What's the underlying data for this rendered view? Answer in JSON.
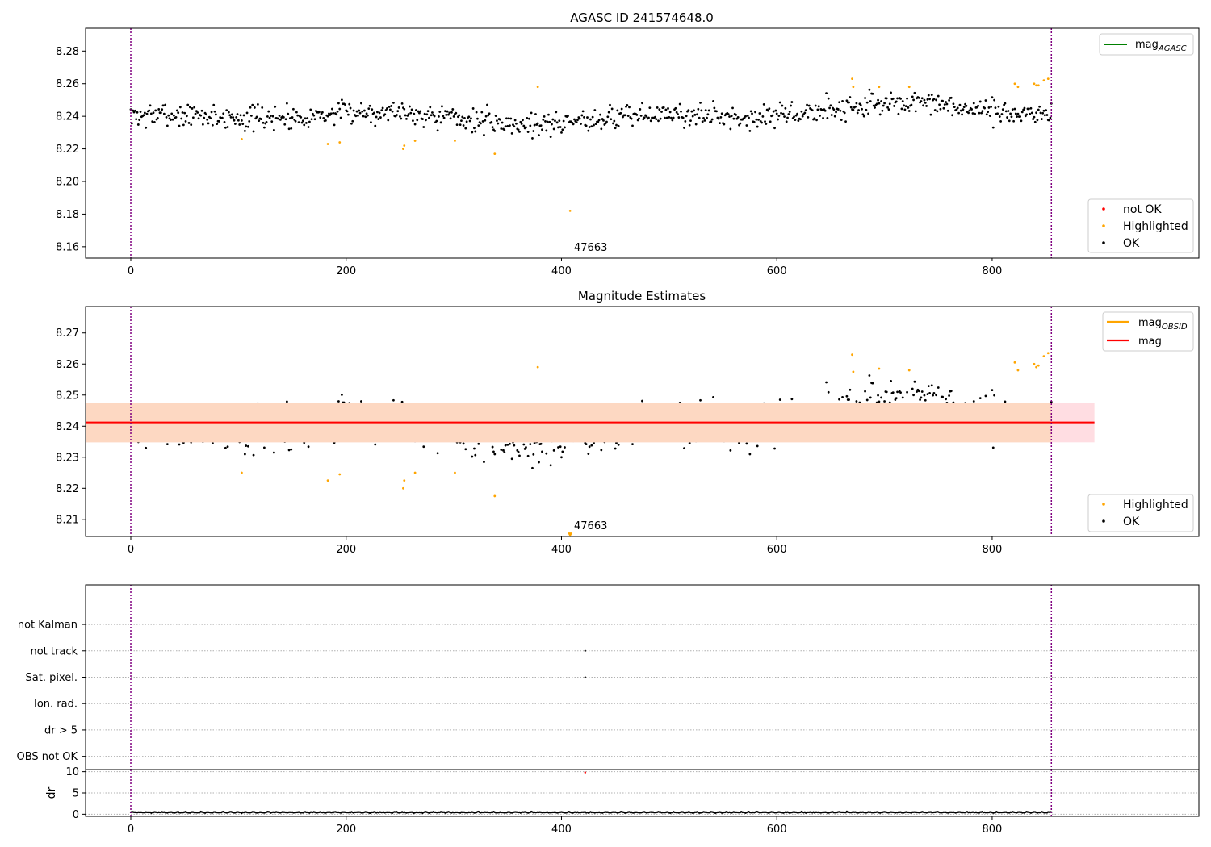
{
  "chart_data": [
    {
      "type": "scatter",
      "title": "AGASC ID 241574648.0",
      "xlabel": "",
      "ylabel": "",
      "xlim": [
        -42,
        992
      ],
      "ylim": [
        8.153,
        8.294
      ],
      "xticks": [
        0,
        200,
        400,
        600,
        800
      ],
      "yticks": [
        8.16,
        8.18,
        8.2,
        8.22,
        8.24,
        8.26,
        8.28
      ],
      "ytick_labels": [
        "8.16",
        "8.18",
        "8.20",
        "8.22",
        "8.24",
        "8.26",
        "8.28"
      ],
      "grid": false,
      "vlines": [
        0,
        855
      ],
      "annotation": {
        "text": "47663",
        "x": 410,
        "y": 8.157
      },
      "legend_lines": [
        {
          "label": "mag",
          "sub": "AGASC",
          "color": "#008000"
        }
      ],
      "legend_points": [
        {
          "label": "not OK",
          "color": "#ff0000"
        },
        {
          "label": "Highlighted",
          "color": "#ffa500"
        },
        {
          "label": "OK",
          "color": "#000000"
        }
      ],
      "legend_lines_position": "upper-right",
      "legend_points_position": "lower-right",
      "series": [
        {
          "name": "OK",
          "color": "#000000",
          "generated": {
            "n": 856,
            "x_start": 0,
            "x_end": 855,
            "base": 8.2375,
            "base_end": 8.2435,
            "seed": 7
          }
        },
        {
          "name": "Highlighted",
          "color": "#ffa500",
          "x": [
            103,
            183,
            194,
            253,
            254,
            264,
            301,
            338,
            378,
            408,
            670,
            671,
            695,
            723,
            821,
            824,
            839,
            841,
            843,
            848,
            852
          ],
          "y": [
            8.226,
            8.223,
            8.224,
            8.22,
            8.222,
            8.225,
            8.225,
            8.217,
            8.258,
            8.182,
            8.263,
            8.258,
            8.258,
            8.258,
            8.26,
            8.258,
            8.26,
            8.259,
            8.259,
            8.262,
            8.263
          ]
        }
      ]
    },
    {
      "type": "scatter",
      "title": "Magnitude Estimates",
      "xlabel": "",
      "ylabel": "",
      "xlim": [
        -42,
        992
      ],
      "ylim": [
        8.2045,
        8.2785
      ],
      "xticks": [
        0,
        200,
        400,
        600,
        800
      ],
      "yticks": [
        8.21,
        8.22,
        8.23,
        8.24,
        8.25,
        8.26,
        8.27
      ],
      "ytick_labels": [
        "8.21",
        "8.22",
        "8.23",
        "8.24",
        "8.25",
        "8.26",
        "8.27"
      ],
      "grid": false,
      "vlines": [
        0,
        855
      ],
      "annotation": {
        "text": "47663",
        "x": 410,
        "y": 8.2068
      },
      "mag_line": {
        "y": 8.2412,
        "x_start": -42,
        "x_end": 895,
        "color": "#ff0000"
      },
      "band_outer": {
        "y_low": 8.2348,
        "y_high": 8.2476,
        "x_start": -42,
        "x_end": 895,
        "color": "#ffdde2"
      },
      "band_inner": {
        "y_low": 8.2348,
        "y_high": 8.2476,
        "x_start": -42,
        "x_end": 855,
        "color": "#fdd8c2"
      },
      "legend_lines": [
        {
          "label": "mag",
          "sub": "OBSID",
          "color": "#ffa500"
        },
        {
          "label": "mag",
          "sub": "",
          "color": "#ff0000"
        }
      ],
      "legend_points": [
        {
          "label": "Highlighted",
          "color": "#ffa500"
        },
        {
          "label": "OK",
          "color": "#000000"
        }
      ],
      "legend_lines_position": "upper-right",
      "legend_points_position": "lower-right",
      "series": [
        {
          "name": "OK",
          "color": "#000000",
          "generated": {
            "n": 856,
            "x_start": 0,
            "x_end": 855,
            "base": 8.2375,
            "base_end": 8.2435,
            "seed": 7
          }
        },
        {
          "name": "Highlighted",
          "color": "#ffa500",
          "x": [
            103,
            183,
            194,
            253,
            254,
            264,
            301,
            338,
            378,
            670,
            671,
            695,
            723,
            821,
            824,
            839,
            841,
            843,
            848,
            852
          ],
          "y": [
            8.225,
            8.2225,
            8.2245,
            8.22,
            8.2225,
            8.225,
            8.225,
            8.2175,
            8.259,
            8.263,
            8.2575,
            8.2585,
            8.258,
            8.2605,
            8.258,
            8.26,
            8.259,
            8.2595,
            8.2625,
            8.2635
          ]
        },
        {
          "name": "offscale",
          "color": "#ffa500",
          "marker": "triangle-down",
          "x": [
            408
          ],
          "y": [
            8.205
          ]
        }
      ]
    },
    {
      "type": "scatter",
      "title": "",
      "xlabel": "",
      "ylabel": "",
      "xlim": [
        -42,
        992
      ],
      "ylim": [
        -0.5,
        6.5
      ],
      "categories": [
        "OBS not OK",
        "dr > 5",
        "Ion. rad.",
        "Sat. pixel.",
        "not track",
        "not Kalman"
      ],
      "grid": "y-dotted",
      "vlines": [
        0,
        855
      ],
      "series": [
        {
          "name": "flags",
          "color": "#000000",
          "x": [
            422,
            422
          ],
          "y": [
            4,
            3
          ]
        }
      ]
    },
    {
      "type": "scatter",
      "title": "",
      "xlabel": "",
      "ylabel": "dr",
      "xlim": [
        -42,
        992
      ],
      "ylim": [
        -0.5,
        10.5
      ],
      "xticks": [
        0,
        200,
        400,
        600,
        800
      ],
      "yticks": [
        0,
        5,
        10
      ],
      "ytick_labels": [
        "0",
        "5",
        "10"
      ],
      "grid": "y-dotted",
      "vlines": [
        0,
        855
      ],
      "series": [
        {
          "name": "dr",
          "color": "#000000",
          "generated": {
            "n": 856,
            "x_start": 0,
            "x_end": 855,
            "base": 0.45,
            "amp": 0.15,
            "seed": 3
          }
        },
        {
          "name": "dr-outlier",
          "color": "#ff0000",
          "x": [
            422
          ],
          "y": [
            9.8
          ]
        }
      ]
    }
  ]
}
